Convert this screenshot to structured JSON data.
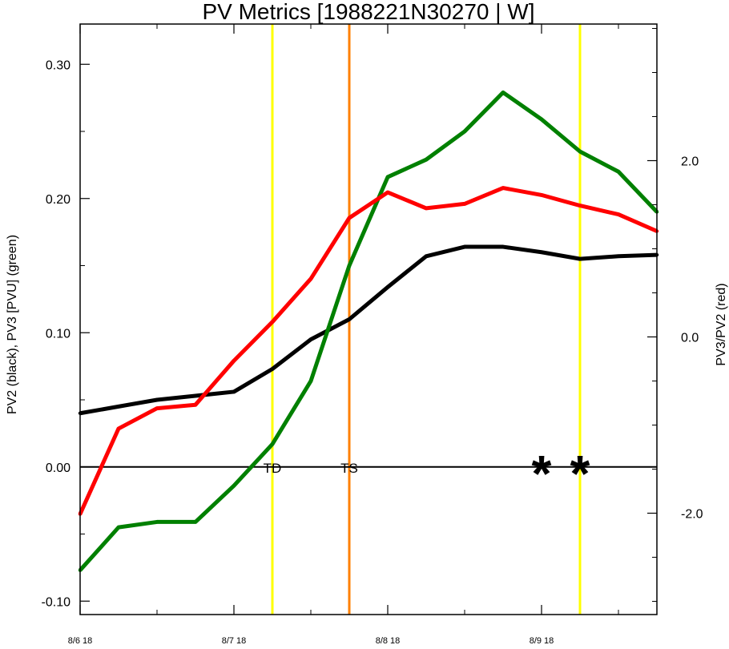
{
  "chart_data": {
    "type": "line",
    "title": "PV Metrics [1988221N30270 | W]",
    "ylabel_left": "PV2 (black), PV3 [PVU] (green)",
    "ylabel_right": "PV3/PV2 (red)",
    "x_tick_labels": [
      "8/6 18",
      "8/7 18",
      "8/8 18",
      "8/9 18"
    ],
    "x_range_hours": [
      0,
      90
    ],
    "x_major_ticks_hours": [
      0,
      24,
      48,
      72
    ],
    "x": [
      0,
      6,
      12,
      18,
      24,
      30,
      36,
      42,
      48,
      54,
      60,
      66,
      72,
      78,
      84,
      90
    ],
    "ylim_left": [
      -0.11,
      0.33
    ],
    "yticks_left": [
      -0.1,
      0.0,
      0.1,
      0.2,
      0.3
    ],
    "ytick_labels_left": [
      "-0.10",
      "0.00",
      "0.10",
      "0.20",
      "0.30"
    ],
    "ylim_right": [
      -3.15,
      3.55
    ],
    "yticks_right": [
      -2.0,
      0.0,
      2.0
    ],
    "ytick_labels_right": [
      "-2.0",
      "0.0",
      "2.0"
    ],
    "series": [
      {
        "axis": "left",
        "color": "#000000",
        "values": [
          0.04,
          0.045,
          0.05,
          0.053,
          0.056,
          0.073,
          0.095,
          0.11,
          0.134,
          0.157,
          0.164,
          0.164,
          0.16,
          0.155,
          0.157,
          0.158
        ]
      },
      {
        "axis": "left",
        "color": "#008000",
        "values": [
          -0.077,
          -0.045,
          -0.041,
          -0.041,
          -0.014,
          0.017,
          0.064,
          0.15,
          0.216,
          0.229,
          0.25,
          0.279,
          0.259,
          0.235,
          0.22,
          0.19
        ]
      },
      {
        "axis": "right",
        "color": "#ff0000",
        "values": [
          -2.01,
          -1.04,
          -0.81,
          -0.77,
          -0.27,
          0.17,
          0.66,
          1.35,
          1.64,
          1.46,
          1.51,
          1.69,
          1.61,
          1.49,
          1.39,
          1.2
        ]
      }
    ],
    "zero_line_left": 0.0,
    "vlines": [
      {
        "x": 30,
        "color": "#ffff00",
        "label": "TD"
      },
      {
        "x": 42,
        "color": "#ff8000",
        "label": "TS"
      },
      {
        "x": 78,
        "color": "#ffff00",
        "label": ""
      }
    ],
    "markers": [
      {
        "x": 72,
        "y": 0.0,
        "symbol": "*"
      },
      {
        "x": 78,
        "y": 0.0,
        "symbol": "*"
      }
    ],
    "grid": false,
    "legend": "none"
  }
}
